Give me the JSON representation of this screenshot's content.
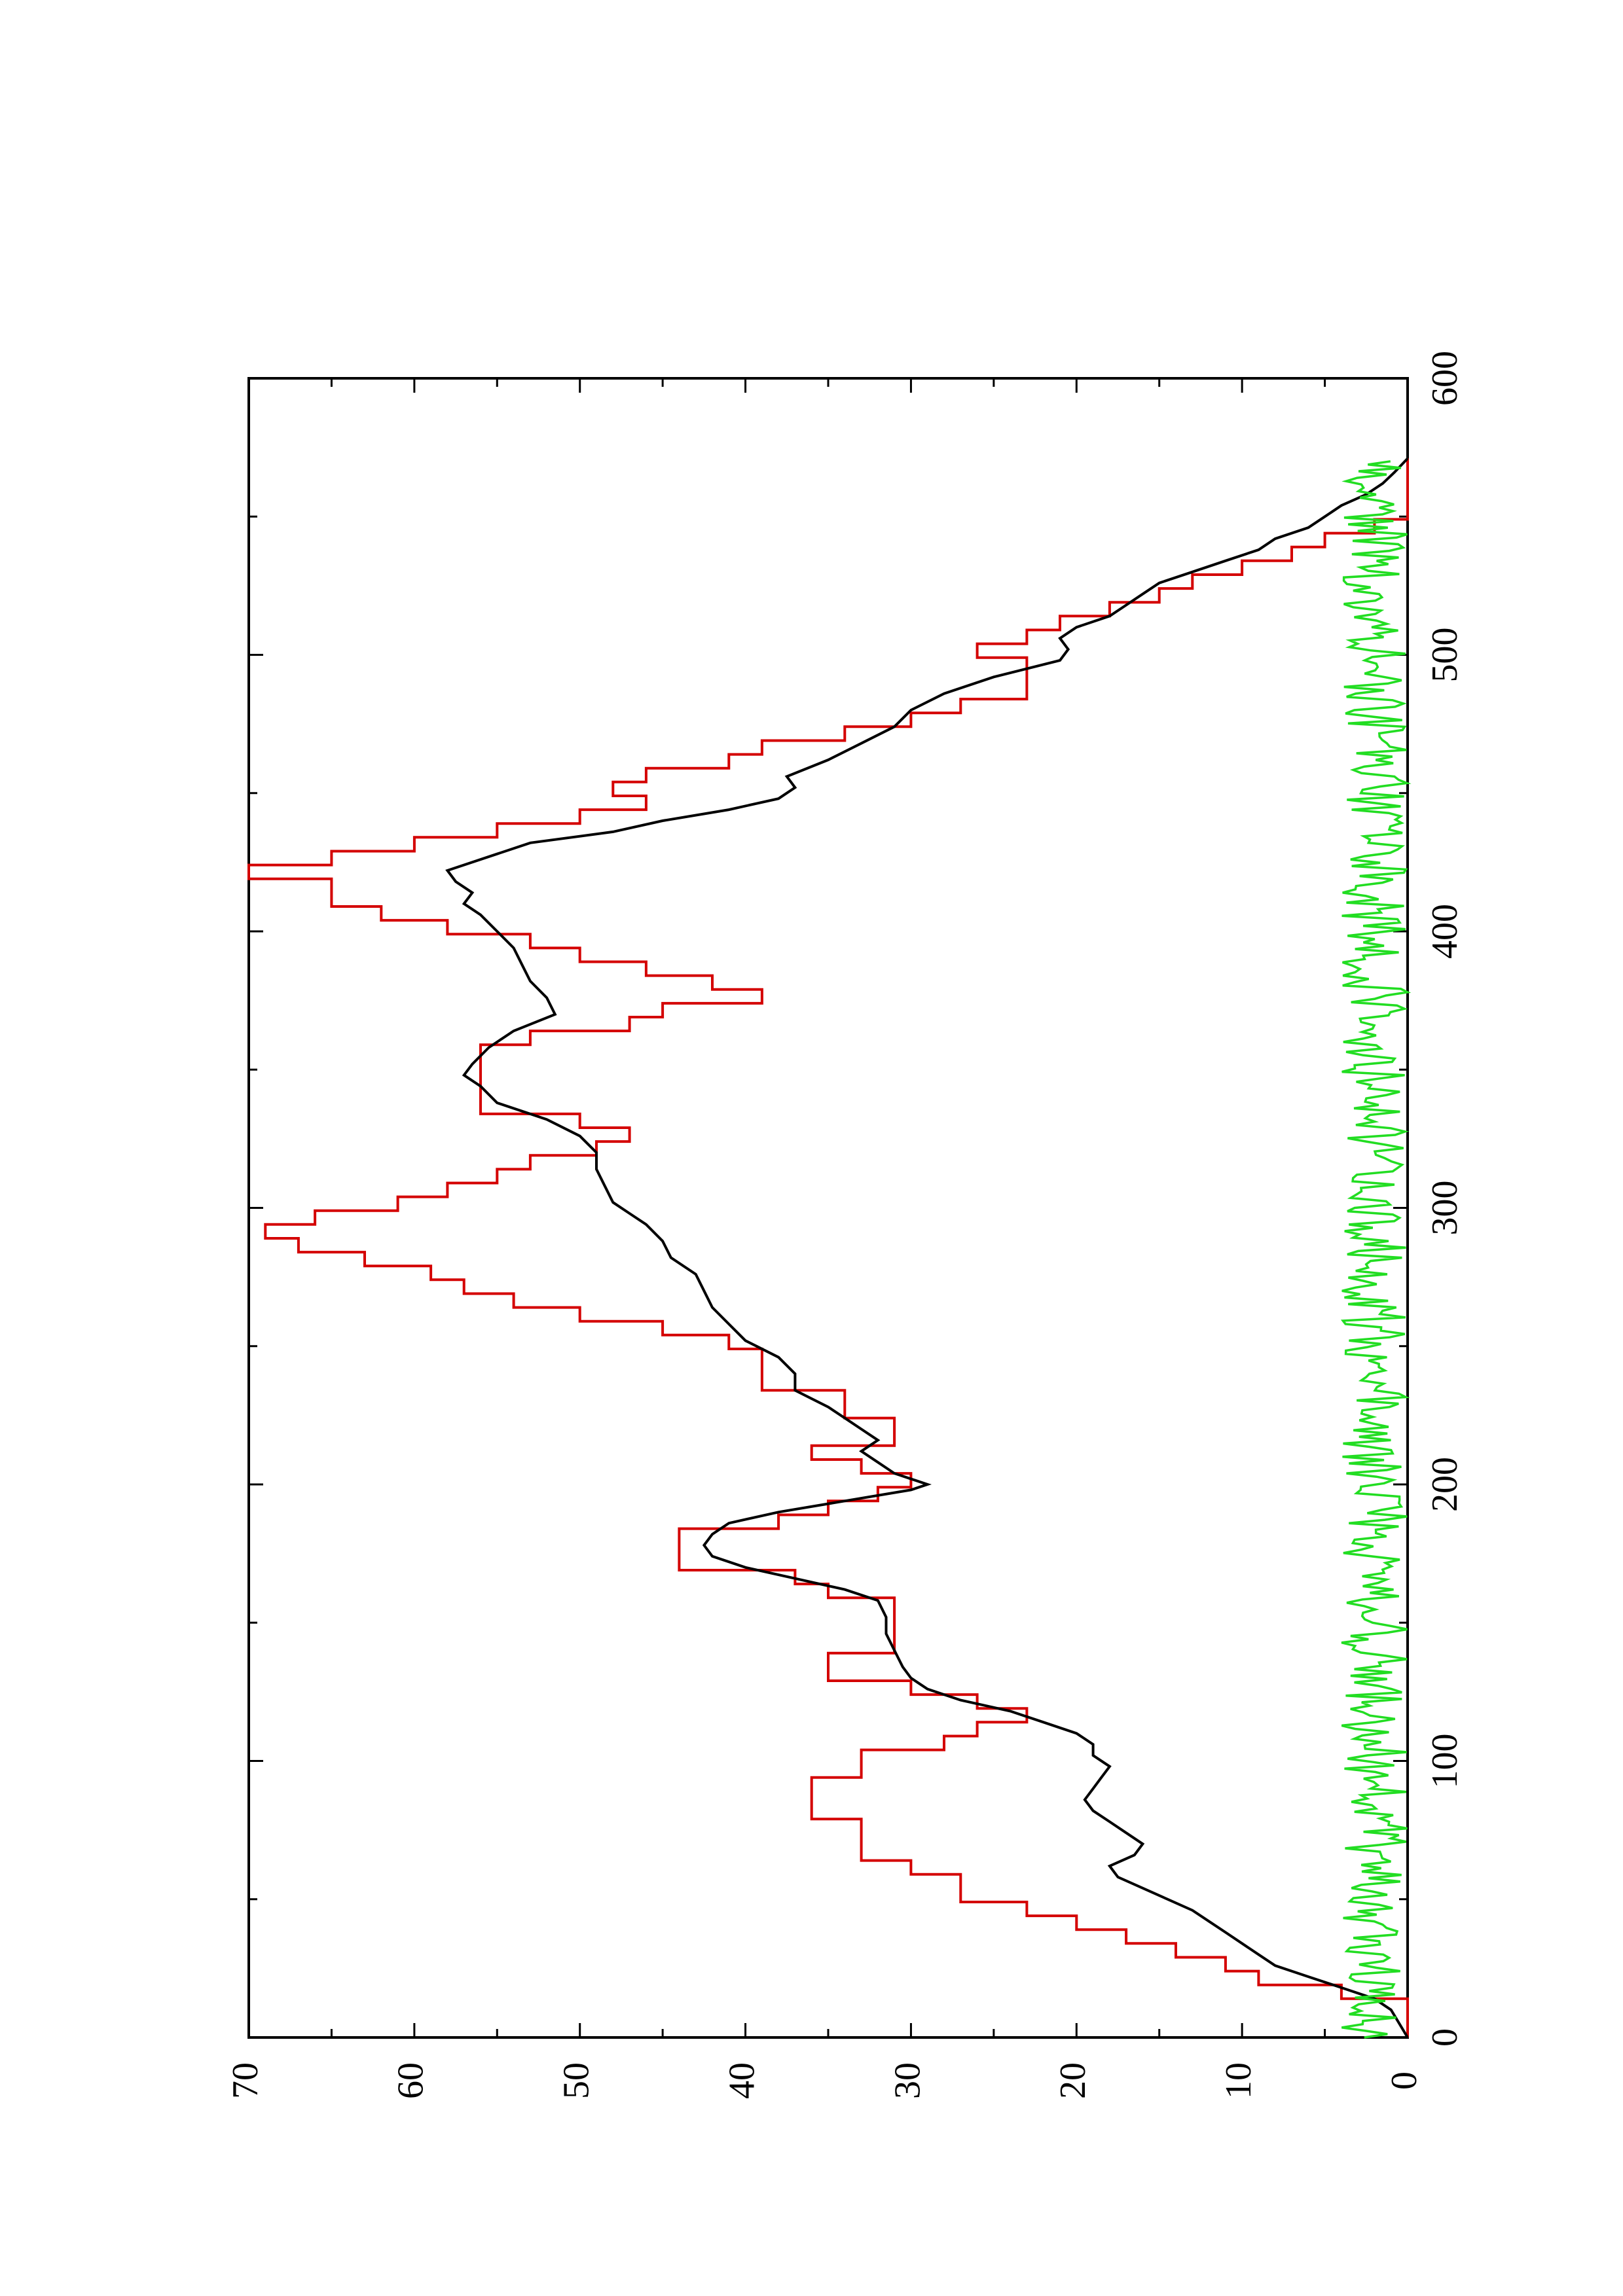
{
  "chart_data": {
    "type": "line",
    "title": "",
    "xlabel": "",
    "ylabel": "",
    "xlim": [
      0,
      600
    ],
    "ylim": [
      0,
      70
    ],
    "x_ticks": [
      0,
      100,
      200,
      300,
      400,
      500,
      600
    ],
    "y_ticks": [
      0,
      10,
      20,
      30,
      40,
      50,
      60,
      70
    ],
    "x_tick_labels": [
      "0",
      "100",
      "200",
      "300",
      "400",
      "500",
      "600"
    ],
    "y_tick_labels": [
      "0",
      "10",
      "20",
      "30",
      "40",
      "50",
      "60",
      "70"
    ],
    "orientation": "rotated 90 degrees counter-clockwise",
    "grid": false,
    "legend": "none",
    "series": [
      {
        "color": "#d40000",
        "style": "step",
        "points": [
          [
            0,
            0
          ],
          [
            14,
            0
          ],
          [
            14,
            4
          ],
          [
            19,
            4
          ],
          [
            19,
            9
          ],
          [
            24,
            9
          ],
          [
            24,
            11
          ],
          [
            29,
            11
          ],
          [
            29,
            14
          ],
          [
            34,
            14
          ],
          [
            34,
            17
          ],
          [
            39,
            17
          ],
          [
            39,
            20
          ],
          [
            44,
            20
          ],
          [
            44,
            23
          ],
          [
            49,
            23
          ],
          [
            49,
            27
          ],
          [
            59,
            27
          ],
          [
            59,
            30
          ],
          [
            64,
            30
          ],
          [
            64,
            33
          ],
          [
            79,
            33
          ],
          [
            79,
            36
          ],
          [
            94,
            36
          ],
          [
            94,
            33
          ],
          [
            104,
            33
          ],
          [
            104,
            28
          ],
          [
            109,
            28
          ],
          [
            109,
            26
          ],
          [
            114,
            26
          ],
          [
            114,
            23
          ],
          [
            119,
            23
          ],
          [
            119,
            26
          ],
          [
            124,
            26
          ],
          [
            124,
            30
          ],
          [
            129,
            30
          ],
          [
            129,
            35
          ],
          [
            139,
            35
          ],
          [
            139,
            31
          ],
          [
            159,
            31
          ],
          [
            159,
            35
          ],
          [
            164,
            35
          ],
          [
            164,
            37
          ],
          [
            169,
            37
          ],
          [
            169,
            44
          ],
          [
            184,
            44
          ],
          [
            184,
            38
          ],
          [
            189,
            38
          ],
          [
            189,
            35
          ],
          [
            194,
            35
          ],
          [
            194,
            32
          ],
          [
            199,
            32
          ],
          [
            199,
            30
          ],
          [
            204,
            30
          ],
          [
            204,
            33
          ],
          [
            209,
            33
          ],
          [
            209,
            36
          ],
          [
            214,
            36
          ],
          [
            214,
            31
          ],
          [
            224,
            31
          ],
          [
            224,
            34
          ],
          [
            234,
            34
          ],
          [
            234,
            39
          ],
          [
            249,
            39
          ],
          [
            249,
            41
          ],
          [
            254,
            41
          ],
          [
            254,
            45
          ],
          [
            259,
            45
          ],
          [
            259,
            50
          ],
          [
            264,
            50
          ],
          [
            264,
            54
          ],
          [
            269,
            54
          ],
          [
            269,
            57
          ],
          [
            274,
            57
          ],
          [
            274,
            59
          ],
          [
            279,
            59
          ],
          [
            279,
            63
          ],
          [
            284,
            63
          ],
          [
            284,
            67
          ],
          [
            289,
            67
          ],
          [
            289,
            69
          ],
          [
            294,
            69
          ],
          [
            294,
            66
          ],
          [
            299,
            66
          ],
          [
            299,
            61
          ],
          [
            304,
            61
          ],
          [
            304,
            58
          ],
          [
            309,
            58
          ],
          [
            309,
            55
          ],
          [
            314,
            55
          ],
          [
            314,
            53
          ],
          [
            319,
            53
          ],
          [
            319,
            49
          ],
          [
            324,
            49
          ],
          [
            324,
            47
          ],
          [
            329,
            47
          ],
          [
            329,
            50
          ],
          [
            334,
            50
          ],
          [
            334,
            56
          ],
          [
            359,
            56
          ],
          [
            359,
            53
          ],
          [
            364,
            53
          ],
          [
            364,
            47
          ],
          [
            369,
            47
          ],
          [
            369,
            45
          ],
          [
            374,
            45
          ],
          [
            374,
            39
          ],
          [
            379,
            39
          ],
          [
            379,
            42
          ],
          [
            384,
            42
          ],
          [
            384,
            46
          ],
          [
            389,
            46
          ],
          [
            389,
            50
          ],
          [
            394,
            50
          ],
          [
            394,
            53
          ],
          [
            399,
            53
          ],
          [
            399,
            58
          ],
          [
            404,
            58
          ],
          [
            404,
            62
          ],
          [
            409,
            62
          ],
          [
            409,
            65
          ],
          [
            419,
            65
          ],
          [
            419,
            70
          ],
          [
            424,
            70
          ],
          [
            424,
            65
          ],
          [
            429,
            65
          ],
          [
            429,
            60
          ],
          [
            434,
            60
          ],
          [
            434,
            55
          ],
          [
            439,
            55
          ],
          [
            439,
            50
          ],
          [
            444,
            50
          ],
          [
            444,
            46
          ],
          [
            449,
            46
          ],
          [
            449,
            48
          ],
          [
            454,
            48
          ],
          [
            454,
            46
          ],
          [
            459,
            46
          ],
          [
            459,
            41
          ],
          [
            464,
            41
          ],
          [
            464,
            39
          ],
          [
            469,
            39
          ],
          [
            469,
            34
          ],
          [
            474,
            34
          ],
          [
            474,
            30
          ],
          [
            479,
            30
          ],
          [
            479,
            27
          ],
          [
            484,
            27
          ],
          [
            484,
            23
          ],
          [
            499,
            23
          ],
          [
            499,
            26
          ],
          [
            504,
            26
          ],
          [
            504,
            23
          ],
          [
            509,
            23
          ],
          [
            509,
            21
          ],
          [
            514,
            21
          ],
          [
            514,
            18
          ],
          [
            519,
            18
          ],
          [
            519,
            15
          ],
          [
            524,
            15
          ],
          [
            524,
            13
          ],
          [
            529,
            13
          ],
          [
            529,
            10
          ],
          [
            534,
            10
          ],
          [
            534,
            7
          ],
          [
            539,
            7
          ],
          [
            539,
            5
          ],
          [
            544,
            5
          ],
          [
            544,
            2
          ],
          [
            549,
            2
          ],
          [
            549,
            0
          ],
          [
            571,
            0
          ]
        ]
      },
      {
        "color": "#000000",
        "style": "line",
        "points": [
          [
            0,
            0
          ],
          [
            5,
            0.5
          ],
          [
            10,
            1
          ],
          [
            14,
            2
          ],
          [
            18,
            4
          ],
          [
            22,
            6
          ],
          [
            26,
            8
          ],
          [
            30,
            9
          ],
          [
            34,
            10
          ],
          [
            38,
            11
          ],
          [
            42,
            12
          ],
          [
            46,
            13
          ],
          [
            50,
            14.5
          ],
          [
            54,
            16
          ],
          [
            58,
            17.5
          ],
          [
            62,
            18
          ],
          [
            66,
            16.5
          ],
          [
            70,
            16
          ],
          [
            74,
            17
          ],
          [
            78,
            18
          ],
          [
            82,
            19
          ],
          [
            86,
            19.5
          ],
          [
            90,
            19
          ],
          [
            94,
            18.5
          ],
          [
            98,
            18
          ],
          [
            102,
            19
          ],
          [
            106,
            19
          ],
          [
            110,
            20
          ],
          [
            114,
            22
          ],
          [
            118,
            24
          ],
          [
            122,
            27
          ],
          [
            126,
            29
          ],
          [
            130,
            30
          ],
          [
            134,
            30.5
          ],
          [
            140,
            31
          ],
          [
            146,
            31.5
          ],
          [
            152,
            31.5
          ],
          [
            158,
            32
          ],
          [
            162,
            34
          ],
          [
            166,
            37
          ],
          [
            170,
            40
          ],
          [
            174,
            42
          ],
          [
            178,
            42.5
          ],
          [
            182,
            42
          ],
          [
            186,
            41
          ],
          [
            190,
            38
          ],
          [
            194,
            34
          ],
          [
            198,
            30
          ],
          [
            200,
            29
          ],
          [
            204,
            31
          ],
          [
            208,
            32
          ],
          [
            212,
            33
          ],
          [
            216,
            32
          ],
          [
            220,
            33
          ],
          [
            224,
            34
          ],
          [
            228,
            35
          ],
          [
            234,
            37
          ],
          [
            240,
            37
          ],
          [
            246,
            38
          ],
          [
            252,
            40
          ],
          [
            258,
            41
          ],
          [
            264,
            42
          ],
          [
            270,
            42.5
          ],
          [
            276,
            43
          ],
          [
            282,
            44.5
          ],
          [
            288,
            45
          ],
          [
            294,
            46
          ],
          [
            298,
            47
          ],
          [
            302,
            48
          ],
          [
            308,
            48.5
          ],
          [
            314,
            49
          ],
          [
            320,
            49
          ],
          [
            326,
            50
          ],
          [
            332,
            52
          ],
          [
            338,
            55
          ],
          [
            344,
            56
          ],
          [
            348,
            57
          ],
          [
            352,
            56.5
          ],
          [
            358,
            55.5
          ],
          [
            364,
            54
          ],
          [
            370,
            51.5
          ],
          [
            376,
            52
          ],
          [
            382,
            53
          ],
          [
            388,
            53.5
          ],
          [
            394,
            54
          ],
          [
            400,
            55
          ],
          [
            406,
            56
          ],
          [
            410,
            57
          ],
          [
            414,
            56.5
          ],
          [
            418,
            57.5
          ],
          [
            422,
            58
          ],
          [
            428,
            55
          ],
          [
            432,
            53
          ],
          [
            436,
            48
          ],
          [
            440,
            45
          ],
          [
            444,
            41
          ],
          [
            448,
            38
          ],
          [
            452,
            37
          ],
          [
            456,
            37.5
          ],
          [
            462,
            35
          ],
          [
            468,
            33
          ],
          [
            474,
            31
          ],
          [
            480,
            30
          ],
          [
            486,
            28
          ],
          [
            492,
            25
          ],
          [
            498,
            21
          ],
          [
            502,
            20.5
          ],
          [
            506,
            21
          ],
          [
            510,
            20
          ],
          [
            514,
            18
          ],
          [
            518,
            17
          ],
          [
            522,
            16
          ],
          [
            526,
            15
          ],
          [
            530,
            13
          ],
          [
            534,
            11
          ],
          [
            538,
            9
          ],
          [
            542,
            8
          ],
          [
            546,
            6
          ],
          [
            550,
            5
          ],
          [
            554,
            4
          ],
          [
            558,
            2.5
          ],
          [
            562,
            1.5
          ],
          [
            566,
            0.8
          ],
          [
            571,
            0
          ]
        ]
      },
      {
        "color": "#22dd22",
        "style": "noise",
        "range": [
          0,
          571
        ],
        "amplitude": [
          0,
          4
        ]
      }
    ]
  }
}
